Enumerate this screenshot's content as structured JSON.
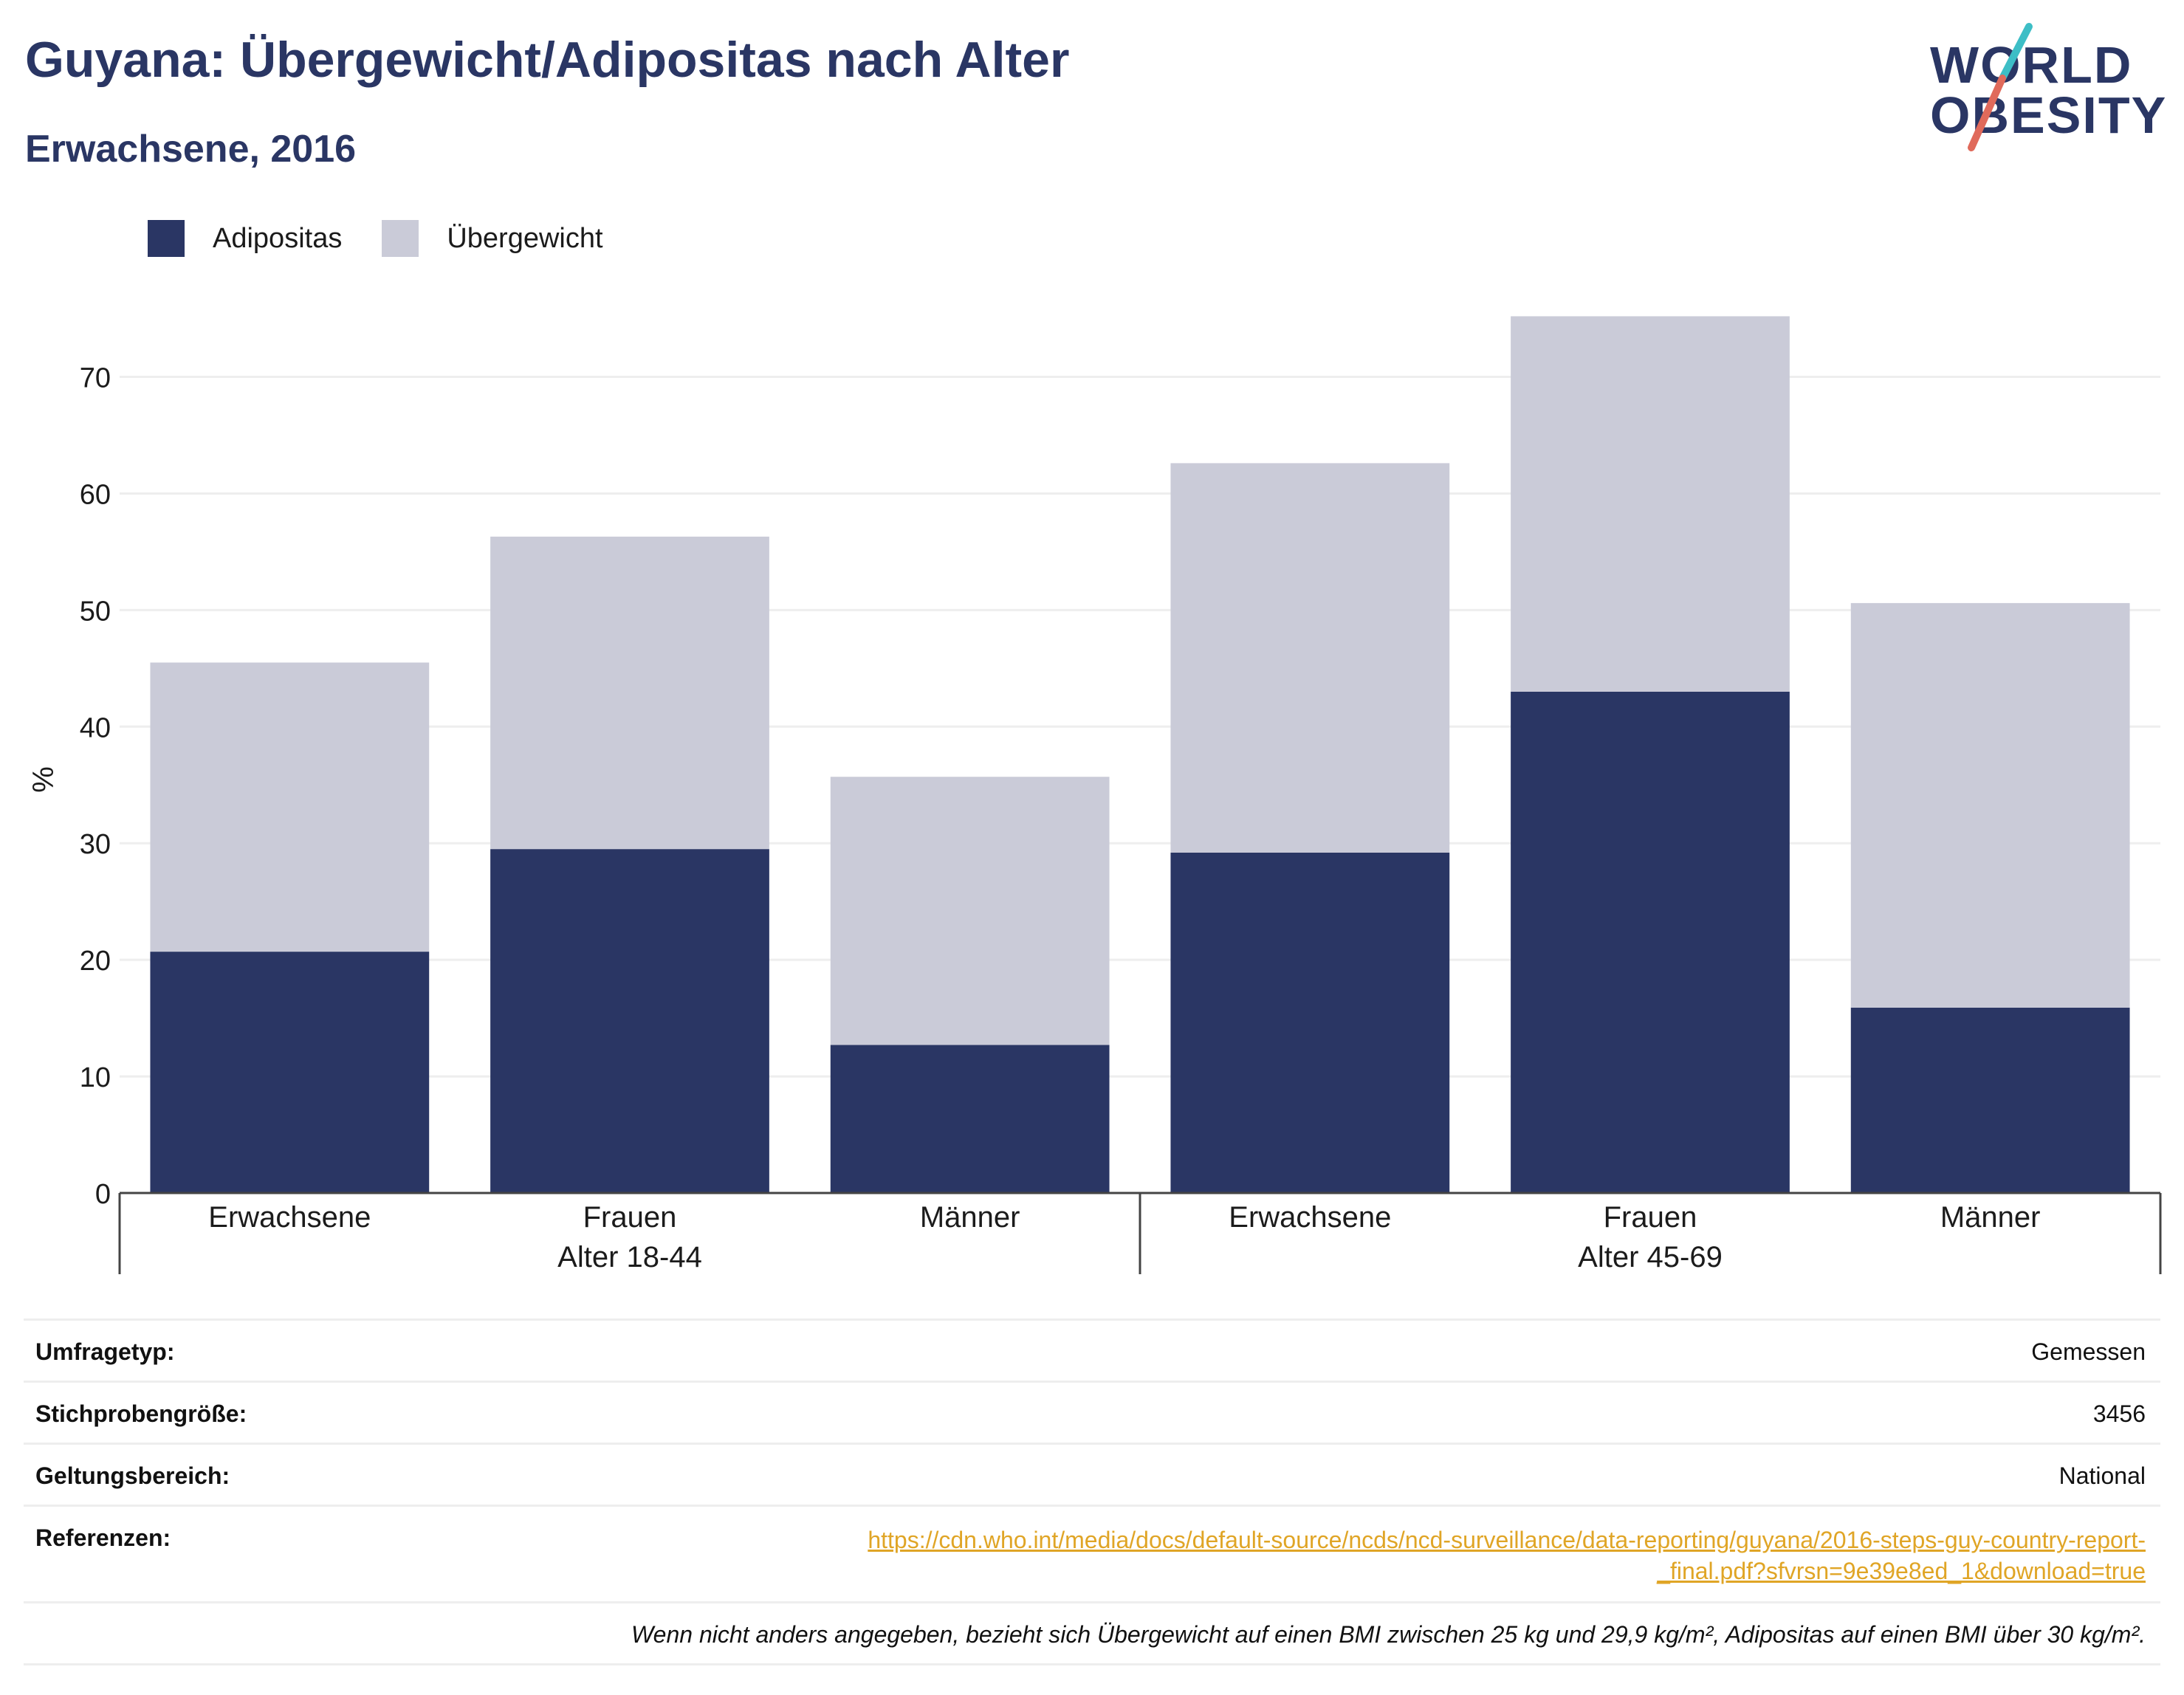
{
  "header": {
    "title": "Guyana: Übergewicht/Adipositas nach Alter",
    "subtitle": "Erwachsene, 2016"
  },
  "logo": {
    "line1": "WORLD",
    "line2": "OBESITY"
  },
  "colors": {
    "adipositas": "#2a3664",
    "uebergewicht": "#cacbd8",
    "grid": "#eeeeee",
    "axis": "#444444",
    "logo_teal": "#3dbec6",
    "logo_coral": "#e06a5b",
    "link": "#e0a526"
  },
  "chart_data": {
    "type": "bar",
    "stacked": true,
    "categories": [
      "Erwachsene",
      "Frauen",
      "Männer",
      "Erwachsene",
      "Frauen",
      "Männer"
    ],
    "groups": [
      {
        "label": "Alter 18-44",
        "categories": [
          "Erwachsene",
          "Frauen",
          "Männer"
        ]
      },
      {
        "label": "Alter 45-69",
        "categories": [
          "Erwachsene",
          "Frauen",
          "Männer"
        ]
      }
    ],
    "series": [
      {
        "name": "Adipositas",
        "values": [
          20.7,
          29.5,
          12.7,
          29.2,
          43.0,
          15.9
        ]
      },
      {
        "name": "Übergewicht",
        "values": [
          24.8,
          26.8,
          23.0,
          33.4,
          32.2,
          34.7
        ]
      }
    ],
    "ylabel": "%",
    "ylim": [
      0,
      77
    ],
    "yticks": [
      0,
      10,
      20,
      30,
      40,
      50,
      60,
      70
    ],
    "grid": true,
    "legend_position": "top-left"
  },
  "info": {
    "rows": [
      {
        "label": "Umfragetyp:",
        "value": "Gemessen"
      },
      {
        "label": "Stichprobengröße:",
        "value": "3456"
      },
      {
        "label": "Geltungsbereich:",
        "value": "National"
      }
    ],
    "reference_label": "Referenzen:",
    "reference_line1": "https://cdn.who.int/media/docs/default-source/ncds/ncd-surveillance/data-reporting/guyana/2016-steps-guy-country-report-",
    "reference_line2": "_final.pdf?sfvrsn=9e39e8ed_1&download=true",
    "note": "Wenn nicht anders angegeben, bezieht sich Übergewicht auf einen BMI zwischen 25 kg und 29,9 kg/m², Adipositas auf einen BMI über 30 kg/m²."
  }
}
